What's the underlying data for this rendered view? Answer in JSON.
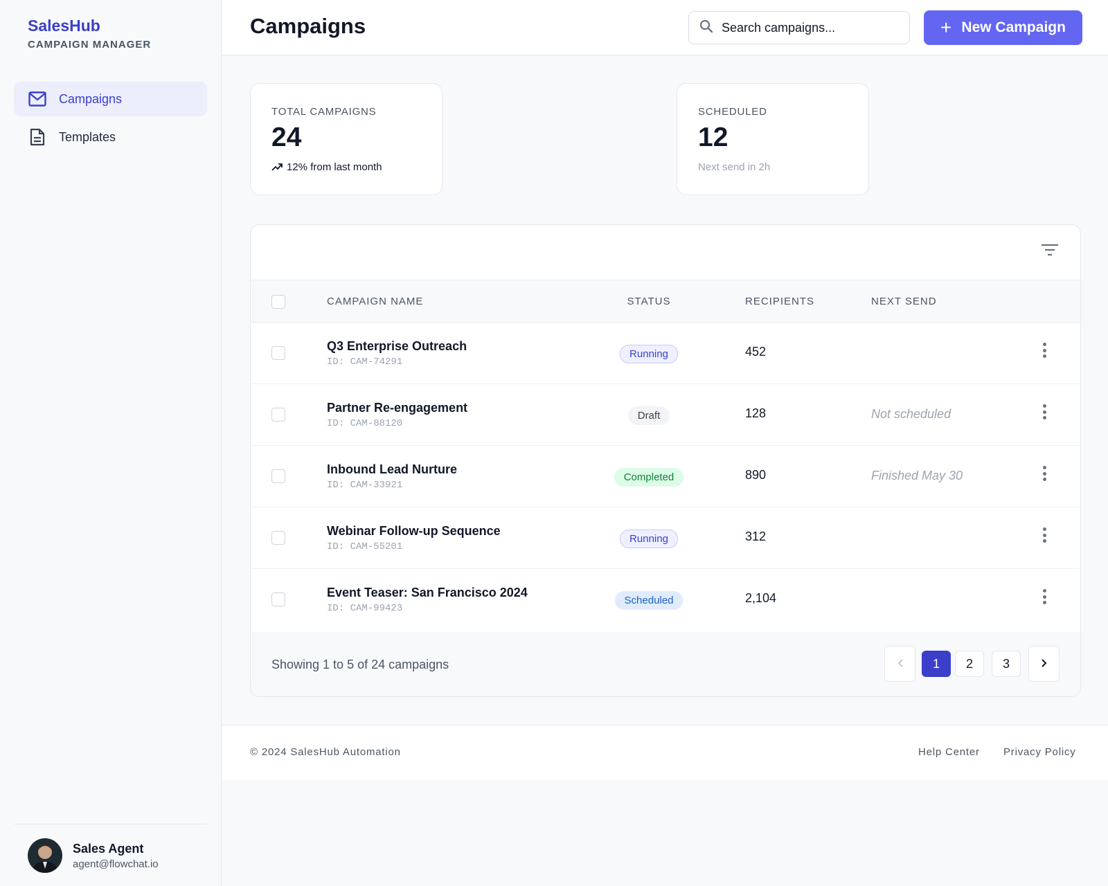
{
  "brand": {
    "name": "SalesHub",
    "subtitle": "CAMPAIGN MANAGER"
  },
  "nav": [
    {
      "label": "Campaigns",
      "icon": "mail-icon",
      "active": true
    },
    {
      "label": "Templates",
      "icon": "document-icon",
      "active": false
    }
  ],
  "user": {
    "name": "Sales Agent",
    "email": "agent@flowchat.io"
  },
  "header": {
    "title": "Campaigns",
    "search_placeholder": "Search campaigns...",
    "new_button": "New Campaign"
  },
  "stats": {
    "total": {
      "label": "TOTAL CAMPAIGNS",
      "value": "24",
      "trend": "12% from last month"
    },
    "scheduled": {
      "label": "SCHEDULED",
      "value": "12",
      "note": "Next send in 2h"
    }
  },
  "table": {
    "columns": {
      "name": "CAMPAIGN NAME",
      "status": "STATUS",
      "recipients": "RECIPIENTS",
      "next_send": "NEXT SEND"
    },
    "rows": [
      {
        "name": "Q3 Enterprise Outreach",
        "id": "ID: CAM-74291",
        "status": "Running",
        "status_kind": "running",
        "recipients": "452",
        "next_send": ""
      },
      {
        "name": "Partner Re-engagement",
        "id": "ID: CAM-88120",
        "status": "Draft",
        "status_kind": "draft",
        "recipients": "128",
        "next_send": "Not scheduled"
      },
      {
        "name": "Inbound Lead Nurture",
        "id": "ID: CAM-33921",
        "status": "Completed",
        "status_kind": "completed",
        "recipients": "890",
        "next_send": "Finished May 30"
      },
      {
        "name": "Webinar Follow-up Sequence",
        "id": "ID: CAM-55201",
        "status": "Running",
        "status_kind": "running",
        "recipients": "312",
        "next_send": ""
      },
      {
        "name": "Event Teaser: San Francisco 2024",
        "id": "ID: CAM-99423",
        "status": "Scheduled",
        "status_kind": "scheduled",
        "recipients": "2,104",
        "next_send": ""
      }
    ],
    "showing": "Showing 1 to 5 of 24 campaigns",
    "pages": [
      "1",
      "2",
      "3"
    ],
    "current_page": "1"
  },
  "footer": {
    "copyright": "© 2024 SalesHub Automation",
    "links": [
      "Help Center",
      "Privacy Policy"
    ]
  },
  "colors": {
    "accent": "#6366f1",
    "brand": "#3b3fc9"
  }
}
